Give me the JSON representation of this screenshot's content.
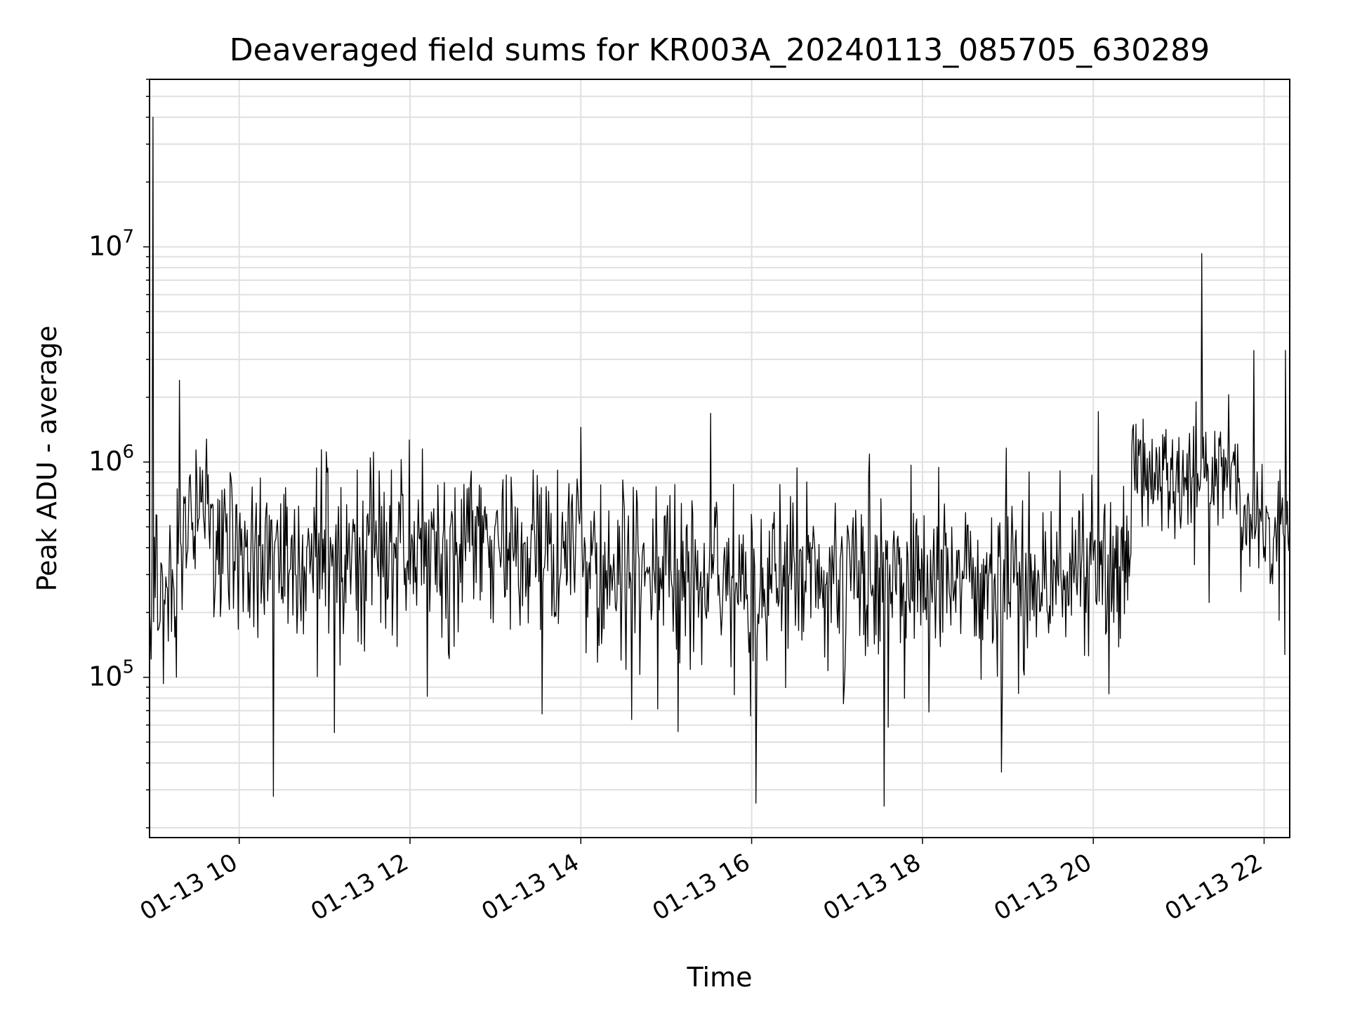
{
  "chart_data": {
    "type": "line",
    "title": "Deaveraged field sums for KR003A_20240113_085705_630289",
    "xlabel": "Time",
    "ylabel": "Peak ADU - average",
    "yscale": "log",
    "ylim": [
      18000,
      60000000
    ],
    "xlim_hours": [
      8.95,
      22.3
    ],
    "x_ticks": [
      {
        "hour": 10,
        "label": "01-13 10"
      },
      {
        "hour": 12,
        "label": "01-13 12"
      },
      {
        "hour": 14,
        "label": "01-13 14"
      },
      {
        "hour": 16,
        "label": "01-13 16"
      },
      {
        "hour": 18,
        "label": "01-13 18"
      },
      {
        "hour": 20,
        "label": "01-13 20"
      },
      {
        "hour": 22,
        "label": "01-13 22"
      }
    ],
    "y_ticks": [
      {
        "value": 100000,
        "base": "10",
        "exp": "5"
      },
      {
        "value": 1000000,
        "base": "10",
        "exp": "6"
      },
      {
        "value": 10000000,
        "base": "10",
        "exp": "7"
      }
    ],
    "grid": true,
    "line_color": "#000000",
    "grid_color": "#e0e0e0",
    "series": [
      {
        "name": "deaveraged field sum",
        "segments": [
          {
            "x0": 8.95,
            "x1": 9.3,
            "median": 250000,
            "spread": 0.45
          },
          {
            "x0": 9.3,
            "x1": 9.7,
            "median": 600000,
            "spread": 0.3
          },
          {
            "x0": 9.7,
            "x1": 12.5,
            "median": 380000,
            "spread": 0.35
          },
          {
            "x0": 12.5,
            "x1": 14.0,
            "median": 420000,
            "spread": 0.3
          },
          {
            "x0": 14.0,
            "x1": 20.45,
            "median": 300000,
            "spread": 0.36
          },
          {
            "x0": 20.45,
            "x1": 21.7,
            "median": 850000,
            "spread": 0.25
          },
          {
            "x0": 21.7,
            "x1": 22.3,
            "median": 500000,
            "spread": 0.2
          }
        ],
        "spikes": [
          {
            "x": 8.99,
            "y": 40000000
          },
          {
            "x": 9.3,
            "y": 2400000
          },
          {
            "x": 10.4,
            "y": 28000
          },
          {
            "x": 14.0,
            "y": 1450000
          },
          {
            "x": 16.05,
            "y": 26000
          },
          {
            "x": 20.5,
            "y": 1500000
          },
          {
            "x": 21.27,
            "y": 9300000
          },
          {
            "x": 21.88,
            "y": 3300000
          },
          {
            "x": 22.25,
            "y": 3300000
          }
        ]
      }
    ]
  }
}
